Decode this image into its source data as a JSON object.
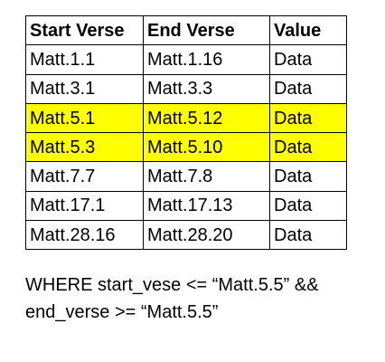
{
  "table": {
    "columns": [
      "Start Verse",
      "End Verse",
      "Value"
    ],
    "rows": [
      {
        "start": "Matt.1.1",
        "end": "Matt.1.16",
        "value": "Data",
        "highlighted": false
      },
      {
        "start": "Matt.3.1",
        "end": "Matt.3.3",
        "value": "Data",
        "highlighted": false
      },
      {
        "start": "Matt.5.1",
        "end": "Matt.5.12",
        "value": "Data",
        "highlighted": true
      },
      {
        "start": "Matt.5.3",
        "end": "Matt.5.10",
        "value": "Data",
        "highlighted": true
      },
      {
        "start": "Matt.7.7",
        "end": "Matt.7.8",
        "value": "Data",
        "highlighted": false
      },
      {
        "start": "Matt.17.1",
        "end": "Matt.17.13",
        "value": "Data",
        "highlighted": false
      },
      {
        "start": "Matt.28.16",
        "end": "Matt.28.20",
        "value": "Data",
        "highlighted": false
      }
    ],
    "highlight_color": "#ffff00"
  },
  "query": {
    "line1": "WHERE start_vese <= “Matt.5.5” &&",
    "line2": "end_verse >= “Matt.5.5”"
  }
}
